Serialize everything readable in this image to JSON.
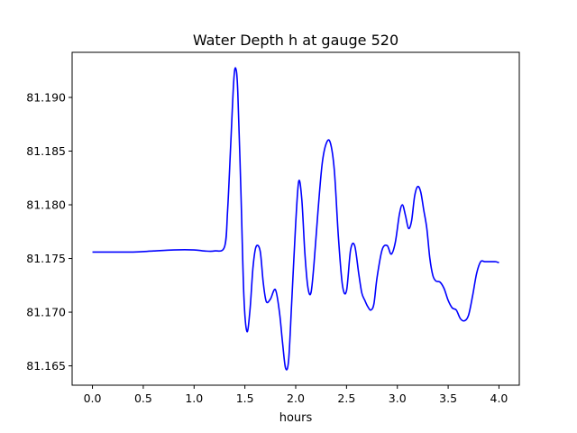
{
  "chart_data": {
    "type": "line",
    "title": "Water Depth h at gauge 520",
    "xlabel": "hours",
    "ylabel": "",
    "xlim": [
      -0.2,
      4.2
    ],
    "ylim": [
      81.1632,
      81.1942
    ],
    "grid": false,
    "legend": "none",
    "x_ticks": [
      0.0,
      0.5,
      1.0,
      1.5,
      2.0,
      2.5,
      3.0,
      3.5,
      4.0
    ],
    "x_tick_labels": [
      "0.0",
      "0.5",
      "1.0",
      "1.5",
      "2.0",
      "2.5",
      "3.0",
      "3.5",
      "4.0"
    ],
    "y_ticks": [
      81.165,
      81.17,
      81.175,
      81.18,
      81.185,
      81.19
    ],
    "y_tick_labels": [
      "81.165",
      "81.170",
      "81.175",
      "81.180",
      "81.185",
      "81.190"
    ],
    "line_color": "#0000ff",
    "series": [
      {
        "x": [
          0.0,
          0.2,
          0.4,
          0.6,
          0.8,
          1.0,
          1.1,
          1.2,
          1.3,
          1.33,
          1.36,
          1.39,
          1.41,
          1.43,
          1.46,
          1.49,
          1.52,
          1.55,
          1.58,
          1.61,
          1.65,
          1.68,
          1.71,
          1.75,
          1.8,
          1.84,
          1.87,
          1.9,
          1.93,
          1.96,
          2.0,
          2.03,
          2.06,
          2.09,
          2.12,
          2.15,
          2.18,
          2.22,
          2.26,
          2.3,
          2.34,
          2.38,
          2.42,
          2.46,
          2.5,
          2.54,
          2.58,
          2.62,
          2.65,
          2.68,
          2.71,
          2.74,
          2.77,
          2.8,
          2.85,
          2.9,
          2.94,
          2.98,
          3.02,
          3.05,
          3.08,
          3.11,
          3.14,
          3.17,
          3.2,
          3.23,
          3.26,
          3.29,
          3.32,
          3.35,
          3.38,
          3.42,
          3.46,
          3.5,
          3.54,
          3.58,
          3.62,
          3.66,
          3.7,
          3.74,
          3.78,
          3.82,
          3.86,
          3.9,
          3.94,
          3.97,
          4.0
        ],
        "y": [
          81.1756,
          81.1756,
          81.1756,
          81.1757,
          81.1758,
          81.1758,
          81.1757,
          81.1757,
          81.1761,
          81.1795,
          81.1855,
          81.1915,
          81.1927,
          81.1905,
          81.1815,
          81.1715,
          81.1682,
          81.1702,
          81.1742,
          81.1761,
          81.1757,
          81.1728,
          81.171,
          81.1712,
          81.1721,
          81.17,
          81.1672,
          81.1648,
          81.1655,
          81.1708,
          81.1783,
          81.1822,
          81.1805,
          81.1755,
          81.1723,
          81.1718,
          81.1745,
          81.1795,
          81.1838,
          81.1857,
          81.1858,
          81.1832,
          81.177,
          81.1725,
          81.172,
          81.1758,
          81.1762,
          81.1736,
          81.1718,
          81.1711,
          81.1705,
          81.1702,
          81.1708,
          81.1732,
          81.1758,
          81.1762,
          81.1754,
          81.1765,
          81.1791,
          81.18,
          81.179,
          81.1778,
          81.1785,
          81.1808,
          81.1817,
          81.1812,
          81.1795,
          81.1778,
          81.175,
          81.1734,
          81.1729,
          81.1728,
          81.1722,
          81.1711,
          81.1704,
          81.1702,
          81.1694,
          81.1692,
          81.1697,
          81.1715,
          81.1736,
          81.1747,
          81.1747,
          81.1747,
          81.1747,
          81.1747,
          81.1746
        ]
      }
    ]
  }
}
